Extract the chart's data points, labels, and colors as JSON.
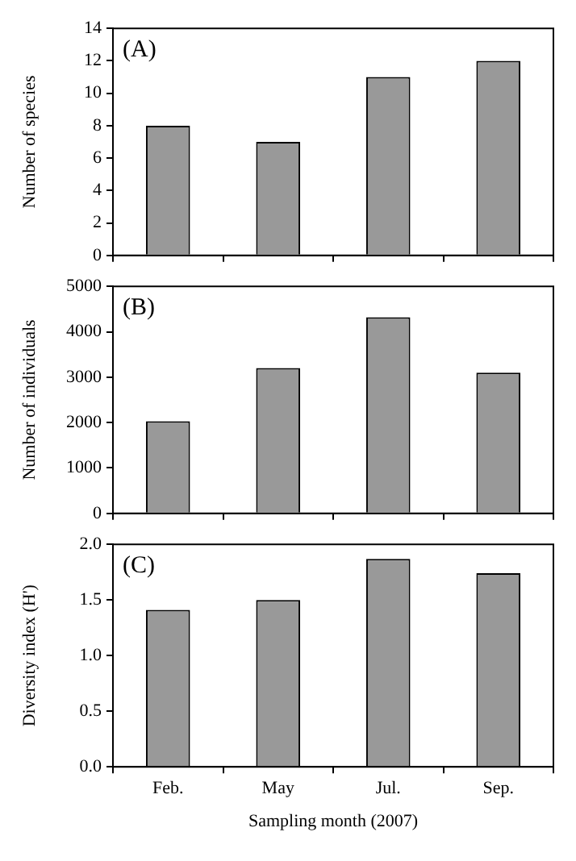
{
  "chart_data": [
    {
      "type": "bar",
      "categories": [
        null,
        null,
        null,
        null
      ],
      "values": [
        8,
        7,
        11,
        12
      ],
      "color": "#999999",
      "ylabel": "Number of species",
      "ylim": [
        0,
        14
      ],
      "yticks": [
        0,
        2,
        4,
        6,
        8,
        10,
        12,
        14
      ],
      "grid": false,
      "tick_labels": "y",
      "annotations": [
        "(A)"
      ]
    },
    {
      "type": "bar",
      "categories": [
        null,
        null,
        null,
        null
      ],
      "values": [
        2030,
        3200,
        4320,
        3100
      ],
      "color": "#999999",
      "ylabel": "Number of individuals",
      "ylim": [
        0,
        5000
      ],
      "yticks": [
        0,
        1000,
        2000,
        3000,
        4000,
        5000
      ],
      "grid": false,
      "tick_labels": "y",
      "annotations": [
        "(B)"
      ]
    },
    {
      "type": "bar",
      "categories": [
        "Feb.",
        "May",
        "Jul.",
        "Sep."
      ],
      "values": [
        1.41,
        1.5,
        1.87,
        1.74
      ],
      "color": "#999999",
      "ylabel": "Diversity index (H')",
      "xlabel": "Sampling month (2007)",
      "ylim": [
        0,
        2
      ],
      "yticks": [
        {
          "value": 0,
          "label": "0.0"
        },
        {
          "value": 0.5,
          "label": "0.5"
        },
        {
          "value": 1,
          "label": "1.0"
        },
        {
          "value": 1.5,
          "label": "1.5"
        },
        {
          "value": 2,
          "label": "2.0"
        }
      ],
      "grid": false,
      "annotations": [
        "(C)"
      ]
    }
  ]
}
